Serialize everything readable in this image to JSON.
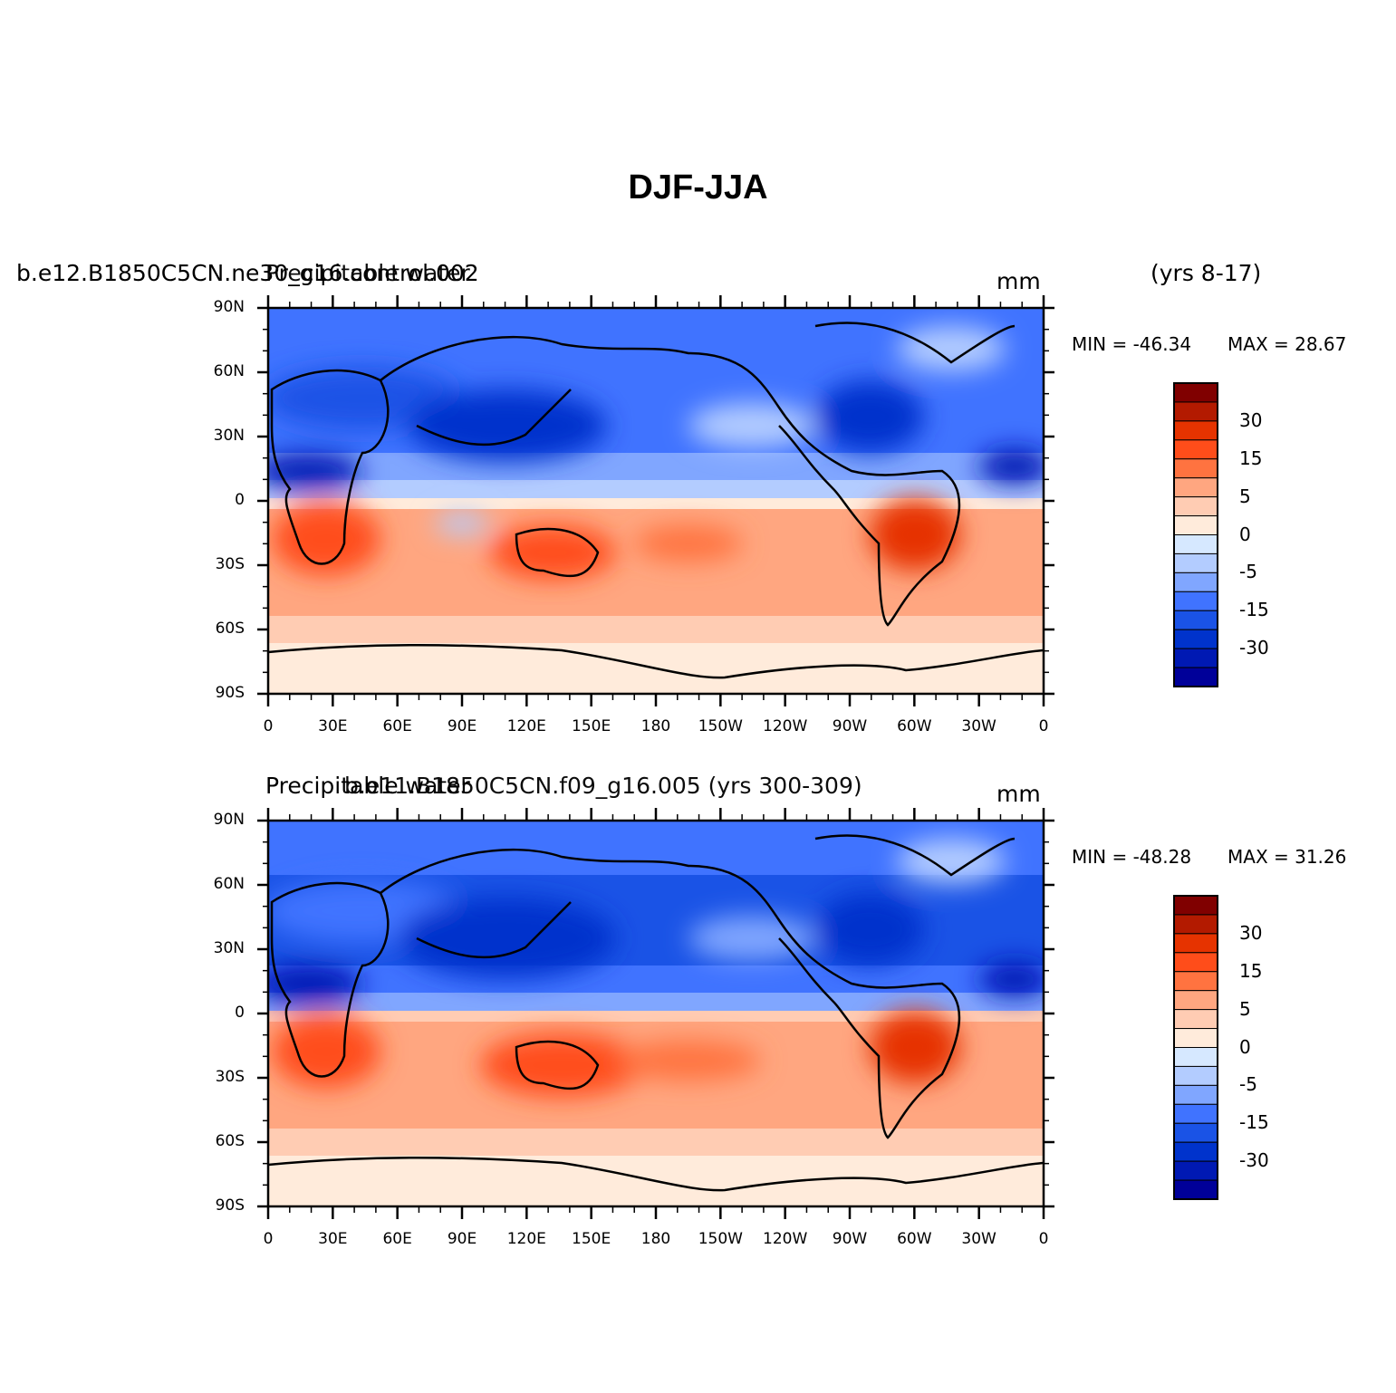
{
  "title": "DJF-JJA",
  "units": "mm",
  "colors": {
    "levels": [
      "#000099",
      "#0019B3",
      "#0033CC",
      "#1A53E6",
      "#4073FF",
      "#80A6FF",
      "#B3CCFF",
      "#D6E8FF",
      "#FFEBDB",
      "#FFCCB3",
      "#FFA680",
      "#FF7340",
      "#FF4D1A",
      "#E63300",
      "#B31A00",
      "#800000"
    ],
    "coastline": "#000000"
  },
  "panels": [
    {
      "left_title": "b.e12.B1850C5CN.ne30_g16.control.002",
      "left_overlay": "Precipitable water",
      "right_title": "(yrs 8-17)",
      "units": "mm",
      "min_label": "MIN = -46.34",
      "max_label": "MAX =  28.67"
    },
    {
      "left_title": "Precipitable water",
      "left_overlay": "b.e11.B1850C5CN.f09_g16.005 (yrs 300-309)",
      "right_title": "",
      "units": "mm",
      "min_label": "MIN = -48.28",
      "max_label": "MAX =  31.26"
    }
  ],
  "axes": {
    "lat_labels": [
      "90N",
      "60N",
      "30N",
      "0",
      "30S",
      "60S",
      "90S"
    ],
    "lon_labels": [
      "0",
      "30E",
      "60E",
      "90E",
      "120E",
      "150E",
      "180",
      "150W",
      "120W",
      "90W",
      "60W",
      "30W",
      "0"
    ]
  },
  "colorbar_labels": [
    "30",
    "15",
    "5",
    "0",
    "-5",
    "-15",
    "-30"
  ]
}
